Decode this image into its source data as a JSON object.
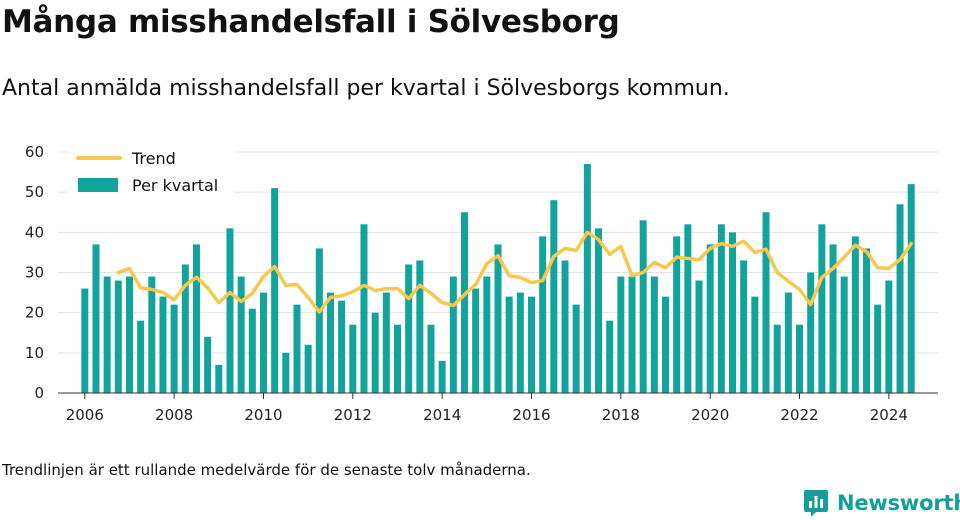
{
  "header": {
    "title": "Många misshandelsfall i Sölvesborg",
    "subtitle": "Antal anmälda misshandelsfall per kvartal i Sölvesborgs kommun."
  },
  "footer": {
    "note": "Trendlinjen är ett rullande medelvärde för de senaste tolv månaderna.",
    "brand": "Newsworthy"
  },
  "colors": {
    "bars": "#11a39c",
    "trend": "#f7c74e",
    "grid": "#e3e3e3",
    "brand": "#139e99"
  },
  "icons": {
    "brand_logo": "bar-chart-speech-bubble-icon"
  },
  "chart_data": {
    "type": "bar",
    "x": [
      2006.0,
      2006.25,
      2006.5,
      2006.75,
      2007.0,
      2007.25,
      2007.5,
      2007.75,
      2008.0,
      2008.25,
      2008.5,
      2008.75,
      2009.0,
      2009.25,
      2009.5,
      2009.75,
      2010.0,
      2010.25,
      2010.5,
      2010.75,
      2011.0,
      2011.25,
      2011.5,
      2011.75,
      2012.0,
      2012.25,
      2012.5,
      2012.75,
      2013.0,
      2013.25,
      2013.5,
      2013.75,
      2014.0,
      2014.25,
      2014.5,
      2014.75,
      2015.0,
      2015.25,
      2015.5,
      2015.75,
      2016.0,
      2016.25,
      2016.5,
      2016.75,
      2017.0,
      2017.25,
      2017.5,
      2017.75,
      2018.0,
      2018.25,
      2018.5,
      2018.75,
      2019.0,
      2019.25,
      2019.5,
      2019.75,
      2020.0,
      2020.25,
      2020.5,
      2020.75,
      2021.0,
      2021.25,
      2021.5,
      2021.75,
      2022.0,
      2022.25,
      2022.5,
      2022.75,
      2023.0,
      2023.25,
      2023.5,
      2023.75,
      2024.0,
      2024.25,
      2024.5
    ],
    "series": [
      {
        "name": "Per kvartal",
        "type": "bar",
        "values": [
          26,
          37,
          29,
          28,
          29,
          18,
          29,
          24,
          22,
          32,
          37,
          14,
          7,
          41,
          29,
          21,
          25,
          51,
          10,
          22,
          12,
          36,
          25,
          23,
          17,
          42,
          20,
          25,
          17,
          32,
          33,
          17,
          8,
          29,
          45,
          26,
          29,
          37,
          24,
          25,
          24,
          39,
          48,
          33,
          22,
          57,
          41,
          18,
          29,
          29,
          43,
          29,
          24,
          39,
          42,
          28,
          37,
          42,
          40,
          33,
          24,
          45,
          17,
          25,
          17,
          30,
          42,
          37,
          29,
          39,
          36,
          22,
          28,
          47,
          52
        ]
      },
      {
        "name": "Trend",
        "type": "line",
        "values": [
          null,
          null,
          null,
          30.0,
          31.0,
          26.2,
          25.8,
          25.0,
          23.2,
          26.8,
          28.8,
          26.2,
          22.5,
          25.0,
          22.8,
          24.8,
          29.0,
          31.5,
          26.8,
          27.0,
          23.8,
          20.2,
          23.8,
          24.2,
          25.2,
          26.8,
          25.5,
          26.0,
          26.0,
          23.5,
          26.8,
          24.8,
          22.5,
          21.8,
          24.5,
          27.0,
          32.2,
          34.2,
          29.2,
          28.8,
          27.5,
          28.0,
          34.0,
          36.0,
          35.5,
          40.0,
          38.2,
          34.5,
          36.5,
          29.2,
          30.0,
          32.5,
          31.2,
          33.8,
          33.5,
          33.2,
          36.0,
          37.2,
          36.5,
          37.8,
          35.0,
          35.8,
          30.0,
          27.8,
          25.8,
          22.0,
          28.8,
          31.0,
          33.8,
          36.8,
          35.2,
          31.2,
          31.0,
          33.2,
          37.2
        ]
      }
    ],
    "x_ticks": [
      "2006",
      "2008",
      "2010",
      "2012",
      "2014",
      "2016",
      "2018",
      "2020",
      "2022",
      "2024"
    ],
    "y_ticks": [
      "0",
      "10",
      "20",
      "30",
      "40",
      "50",
      "60"
    ],
    "ylim": [
      0,
      60
    ],
    "xlim": [
      2005.4,
      2025.1
    ],
    "grid": "horizontal",
    "legend_position": "top-left"
  }
}
